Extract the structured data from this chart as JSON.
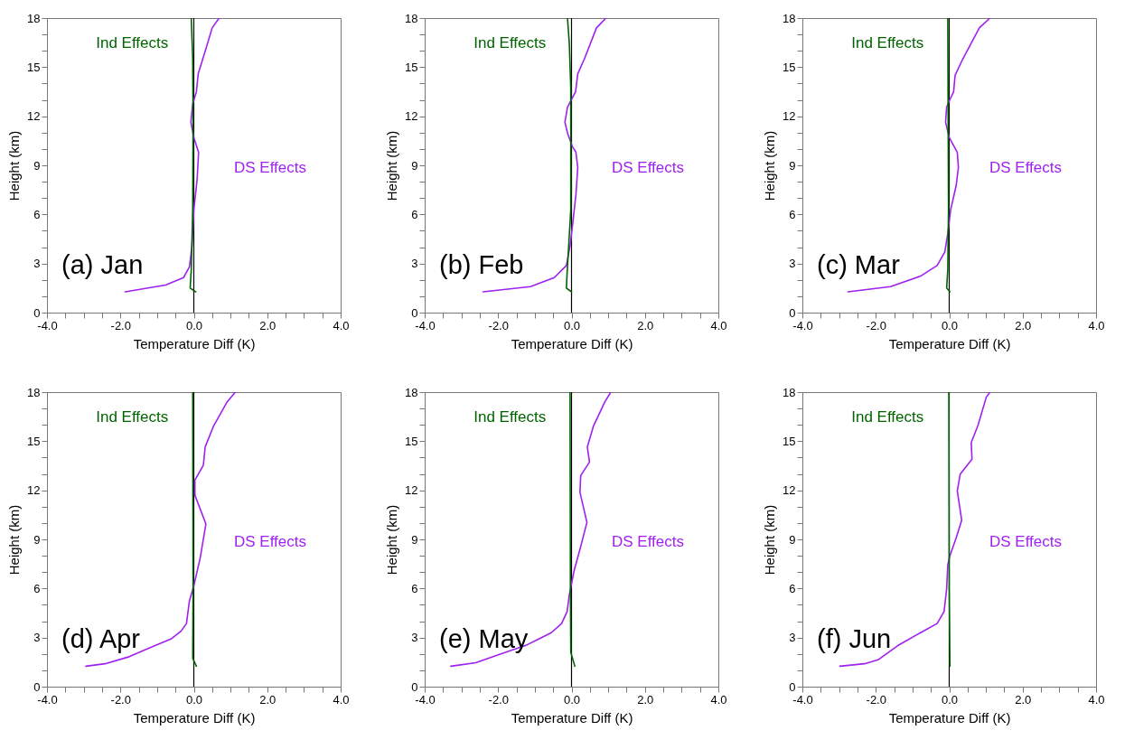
{
  "chart_data": [
    {
      "type": "line",
      "title": "(a) Jan",
      "xlabel": "Temperature Diff (K)",
      "ylabel": "Height (km)",
      "xlim": [
        -4,
        4
      ],
      "ylim": [
        0,
        18
      ],
      "xticks": [
        {
          "value": -4,
          "label": "-4.0"
        },
        {
          "value": -3.5,
          "label": null
        },
        {
          "value": -3,
          "label": null
        },
        {
          "value": -2.5,
          "label": null
        },
        {
          "value": -2,
          "label": "-2.0"
        },
        {
          "value": -1.5,
          "label": null
        },
        {
          "value": -1,
          "label": null
        },
        {
          "value": -0.5,
          "label": null
        },
        {
          "value": 0,
          "label": "0.0"
        },
        {
          "value": 0.5,
          "label": null
        },
        {
          "value": 1,
          "label": null
        },
        {
          "value": 1.5,
          "label": null
        },
        {
          "value": 2,
          "label": "2.0"
        },
        {
          "value": 2.5,
          "label": null
        },
        {
          "value": 3,
          "label": null
        },
        {
          "value": 3.5,
          "label": null
        },
        {
          "value": 4,
          "label": "4.0"
        }
      ],
      "yticks": [
        0,
        {
          "value": 1,
          "label": null
        },
        {
          "value": 2,
          "label": null
        },
        3,
        {
          "value": 4,
          "label": null
        },
        {
          "value": 5,
          "label": null
        },
        6,
        {
          "value": 7,
          "label": null
        },
        {
          "value": 8,
          "label": null
        },
        9,
        {
          "value": 10,
          "label": null
        },
        {
          "value": 11,
          "label": null
        },
        12,
        {
          "value": 13,
          "label": null
        },
        {
          "value": 14,
          "label": null
        },
        15,
        {
          "value": 16,
          "label": null
        },
        {
          "value": 17,
          "label": null
        },
        18
      ],
      "ref_lines": [
        {
          "axis": "x",
          "value": 0,
          "color": "#000000"
        }
      ],
      "series": [
        {
          "name": "DS Effects",
          "color": "#a020f0",
          "x": [
            -1.87,
            -0.77,
            -0.28,
            -0.12,
            -0.05,
            0,
            0.09,
            0.13,
            0,
            -0.08,
            -0.03,
            0.07,
            0.12,
            0.3,
            0.5,
            0.69
          ],
          "values": [
            1.27,
            1.68,
            2.14,
            2.79,
            4.08,
            6.29,
            8.14,
            9.8,
            10.7,
            11.64,
            12.75,
            13.49,
            14.6,
            15.9,
            17.4,
            18
          ]
        },
        {
          "name": "Ind Effects",
          "color": "#006400",
          "x": [
            0.05,
            -0.1,
            -0.07,
            -0.03,
            -0.02,
            -0.03,
            -0.07
          ],
          "values": [
            1.27,
            1.5,
            2.6,
            6.3,
            11.8,
            15.5,
            18
          ]
        }
      ]
    },
    {
      "type": "line",
      "title": "(b) Feb",
      "xlabel": "Temperature Diff (K)",
      "ylabel": "Height (km)",
      "xlim": [
        -4,
        4
      ],
      "ylim": [
        0,
        18
      ],
      "xticks": [
        {
          "value": -4,
          "label": "-4.0"
        },
        {
          "value": -3.5,
          "label": null
        },
        {
          "value": -3,
          "label": null
        },
        {
          "value": -2.5,
          "label": null
        },
        {
          "value": -2,
          "label": "-2.0"
        },
        {
          "value": -1.5,
          "label": null
        },
        {
          "value": -1,
          "label": null
        },
        {
          "value": -0.5,
          "label": null
        },
        {
          "value": 0,
          "label": "0.0"
        },
        {
          "value": 0.5,
          "label": null
        },
        {
          "value": 1,
          "label": null
        },
        {
          "value": 1.5,
          "label": null
        },
        {
          "value": 2,
          "label": "2.0"
        },
        {
          "value": 2.5,
          "label": null
        },
        {
          "value": 3,
          "label": null
        },
        {
          "value": 3.5,
          "label": null
        },
        {
          "value": 4,
          "label": "4.0"
        }
      ],
      "yticks": [
        0,
        {
          "value": 1,
          "label": null
        },
        {
          "value": 2,
          "label": null
        },
        3,
        {
          "value": 4,
          "label": null
        },
        {
          "value": 5,
          "label": null
        },
        6,
        {
          "value": 7,
          "label": null
        },
        {
          "value": 8,
          "label": null
        },
        9,
        {
          "value": 10,
          "label": null
        },
        {
          "value": 11,
          "label": null
        },
        12,
        {
          "value": 13,
          "label": null
        },
        {
          "value": 14,
          "label": null
        },
        15,
        {
          "value": 16,
          "label": null
        },
        {
          "value": 17,
          "label": null
        },
        18
      ],
      "ref_lines": [
        {
          "axis": "x",
          "value": 0,
          "color": "#000000"
        }
      ],
      "series": [
        {
          "name": "DS Effects",
          "color": "#a020f0",
          "x": [
            -2.41,
            -1.12,
            -0.47,
            -0.14,
            -0.04,
            0.02,
            0.12,
            0.17,
            0.12,
            0.02,
            -0.1,
            -0.18,
            -0.11,
            0,
            0.11,
            0.17,
            0.35,
            0.68,
            0.94
          ],
          "values": [
            1.27,
            1.59,
            2.14,
            2.88,
            4.08,
            5.18,
            7.21,
            8.87,
            9.8,
            10.17,
            10.9,
            11.64,
            12.56,
            13.03,
            13.49,
            14.6,
            15.5,
            17.4,
            18
          ]
        },
        {
          "name": "Ind Effects",
          "color": "#006400",
          "x": [
            0,
            -0.14,
            -0.12,
            -0.02,
            -0.02,
            -0.06,
            -0.11
          ],
          "values": [
            1.27,
            1.5,
            2.42,
            6.29,
            13.7,
            16.45,
            18
          ]
        }
      ]
    },
    {
      "type": "line",
      "title": "(c) Mar",
      "xlabel": "Temperature Diff (K)",
      "ylabel": "Height (km)",
      "xlim": [
        -4,
        4
      ],
      "ylim": [
        0,
        18
      ],
      "xticks": [
        {
          "value": -4,
          "label": "-4.0"
        },
        {
          "value": -3.5,
          "label": null
        },
        {
          "value": -3,
          "label": null
        },
        {
          "value": -2.5,
          "label": null
        },
        {
          "value": -2,
          "label": "-2.0"
        },
        {
          "value": -1.5,
          "label": null
        },
        {
          "value": -1,
          "label": null
        },
        {
          "value": -0.5,
          "label": null
        },
        {
          "value": 0,
          "label": "0.0"
        },
        {
          "value": 0.5,
          "label": null
        },
        {
          "value": 1,
          "label": null
        },
        {
          "value": 1.5,
          "label": null
        },
        {
          "value": 2,
          "label": "2.0"
        },
        {
          "value": 2.5,
          "label": null
        },
        {
          "value": 3,
          "label": null
        },
        {
          "value": 3.5,
          "label": null
        },
        {
          "value": 4,
          "label": "4.0"
        }
      ],
      "yticks": [
        0,
        {
          "value": 1,
          "label": null
        },
        {
          "value": 2,
          "label": null
        },
        3,
        {
          "value": 4,
          "label": null
        },
        {
          "value": 5,
          "label": null
        },
        6,
        {
          "value": 7,
          "label": null
        },
        {
          "value": 8,
          "label": null
        },
        9,
        {
          "value": 10,
          "label": null
        },
        {
          "value": 11,
          "label": null
        },
        12,
        {
          "value": 13,
          "label": null
        },
        {
          "value": 14,
          "label": null
        },
        15,
        {
          "value": 16,
          "label": null
        },
        {
          "value": 17,
          "label": null
        },
        18
      ],
      "ref_lines": [
        {
          "axis": "x",
          "value": 0,
          "color": "#000000"
        }
      ],
      "series": [
        {
          "name": "DS Effects",
          "color": "#a020f0",
          "x": [
            -2.76,
            -1.6,
            -0.78,
            -0.33,
            -0.12,
            -0.04,
            0.04,
            0.19,
            0.25,
            0.22,
            0,
            -0.1,
            -0.07,
            0.02,
            0.12,
            0.16,
            0.37,
            0.82,
            1.11
          ],
          "values": [
            1.27,
            1.59,
            2.23,
            2.88,
            3.71,
            4.82,
            6.29,
            7.77,
            8.87,
            9.8,
            10.7,
            11.64,
            12.56,
            13.03,
            13.49,
            14.5,
            15.5,
            17.4,
            18
          ]
        },
        {
          "name": "Ind Effects",
          "color": "#006400",
          "x": [
            0.02,
            -0.07,
            -0.04,
            -0.02,
            -0.04
          ],
          "values": [
            1.27,
            1.5,
            2.6,
            6.3,
            18
          ]
        }
      ]
    },
    {
      "type": "line",
      "title": "(d) Apr",
      "xlabel": "Temperature Diff (K)",
      "ylabel": "Height (km)",
      "xlim": [
        -4,
        4
      ],
      "ylim": [
        0,
        18
      ],
      "xticks": [
        {
          "value": -4,
          "label": "-4.0"
        },
        {
          "value": -3.5,
          "label": null
        },
        {
          "value": -3,
          "label": null
        },
        {
          "value": -2.5,
          "label": null
        },
        {
          "value": -2,
          "label": "-2.0"
        },
        {
          "value": -1.5,
          "label": null
        },
        {
          "value": -1,
          "label": null
        },
        {
          "value": -0.5,
          "label": null
        },
        {
          "value": 0,
          "label": "0.0"
        },
        {
          "value": 0.5,
          "label": null
        },
        {
          "value": 1,
          "label": null
        },
        {
          "value": 1.5,
          "label": null
        },
        {
          "value": 2,
          "label": "2.0"
        },
        {
          "value": 2.5,
          "label": null
        },
        {
          "value": 3,
          "label": null
        },
        {
          "value": 3.5,
          "label": null
        },
        {
          "value": 4,
          "label": "4.0"
        }
      ],
      "yticks": [
        0,
        {
          "value": 1,
          "label": null
        },
        {
          "value": 2,
          "label": null
        },
        3,
        {
          "value": 4,
          "label": null
        },
        {
          "value": 5,
          "label": null
        },
        6,
        {
          "value": 7,
          "label": null
        },
        {
          "value": 8,
          "label": null
        },
        9,
        {
          "value": 10,
          "label": null
        },
        {
          "value": 11,
          "label": null
        },
        12,
        {
          "value": 13,
          "label": null
        },
        {
          "value": 14,
          "label": null
        },
        15,
        {
          "value": 16,
          "label": null
        },
        {
          "value": 17,
          "label": null
        },
        18
      ],
      "ref_lines": [
        {
          "axis": "x",
          "value": 0,
          "color": "#000000"
        }
      ],
      "series": [
        {
          "name": "DS Effects",
          "color": "#a020f0",
          "x": [
            -2.94,
            -2.42,
            -1.76,
            -1.1,
            -0.61,
            -0.35,
            -0.2,
            -0.12,
            0,
            0.17,
            0.33,
            0.03,
            0.03,
            0.26,
            0.31,
            0.54,
            0.91,
            1.13
          ],
          "values": [
            1.25,
            1.4,
            1.83,
            2.47,
            2.93,
            3.39,
            3.86,
            5.24,
            6.16,
            7.82,
            9.94,
            11.7,
            12.62,
            13.54,
            14.65,
            15.94,
            17.41,
            18
          ]
        },
        {
          "name": "Ind Effects",
          "color": "#006400",
          "x": [
            0.07,
            -0.03,
            -0.02,
            -0.03
          ],
          "values": [
            1.25,
            1.73,
            5.98,
            18
          ]
        }
      ]
    },
    {
      "type": "line",
      "title": "(e) May",
      "xlabel": "Temperature Diff (K)",
      "ylabel": "Height (km)",
      "xlim": [
        -4,
        4
      ],
      "ylim": [
        0,
        18
      ],
      "xticks": [
        {
          "value": -4,
          "label": "-4.0"
        },
        {
          "value": -3.5,
          "label": null
        },
        {
          "value": -3,
          "label": null
        },
        {
          "value": -2.5,
          "label": null
        },
        {
          "value": -2,
          "label": "-2.0"
        },
        {
          "value": -1.5,
          "label": null
        },
        {
          "value": -1,
          "label": null
        },
        {
          "value": -0.5,
          "label": null
        },
        {
          "value": 0,
          "label": "0.0"
        },
        {
          "value": 0.5,
          "label": null
        },
        {
          "value": 1,
          "label": null
        },
        {
          "value": 1.5,
          "label": null
        },
        {
          "value": 2,
          "label": "2.0"
        },
        {
          "value": 2.5,
          "label": null
        },
        {
          "value": 3,
          "label": null
        },
        {
          "value": 3.5,
          "label": null
        },
        {
          "value": 4,
          "label": "4.0"
        }
      ],
      "yticks": [
        0,
        {
          "value": 1,
          "label": null
        },
        {
          "value": 2,
          "label": null
        },
        3,
        {
          "value": 4,
          "label": null
        },
        {
          "value": 5,
          "label": null
        },
        6,
        {
          "value": 7,
          "label": null
        },
        {
          "value": 8,
          "label": null
        },
        9,
        {
          "value": 10,
          "label": null
        },
        {
          "value": 11,
          "label": null
        },
        12,
        {
          "value": 13,
          "label": null
        },
        {
          "value": 14,
          "label": null
        },
        15,
        {
          "value": 16,
          "label": null
        },
        {
          "value": 17,
          "label": null
        },
        18
      ],
      "ref_lines": [
        {
          "axis": "x",
          "value": 0,
          "color": "#000000"
        }
      ],
      "series": [
        {
          "name": "DS Effects",
          "color": "#a020f0",
          "x": [
            -3.29,
            -2.61,
            -2.03,
            -1.21,
            -0.88,
            -0.55,
            -0.27,
            -0.12,
            -0.06,
            0.07,
            0.25,
            0.42,
            0.23,
            0.25,
            0.49,
            0.43,
            0.6,
            0.91,
            1.07
          ],
          "values": [
            1.25,
            1.46,
            1.92,
            2.56,
            2.93,
            3.3,
            3.86,
            4.59,
            5.61,
            7.08,
            8.56,
            10.04,
            11.88,
            12.9,
            13.73,
            14.65,
            15.94,
            17.41,
            18
          ]
        },
        {
          "name": "Ind Effects",
          "color": "#006400",
          "x": [
            0.09,
            -0.02,
            -0.03,
            -0.04
          ],
          "values": [
            1.25,
            2.1,
            5.98,
            18
          ]
        }
      ]
    },
    {
      "type": "line",
      "title": "(f) Jun",
      "xlabel": "Temperature Diff (K)",
      "ylabel": "Height (km)",
      "xlim": [
        -4,
        4
      ],
      "ylim": [
        0,
        18
      ],
      "xticks": [
        {
          "value": -4,
          "label": "-4.0"
        },
        {
          "value": -3.5,
          "label": null
        },
        {
          "value": -3,
          "label": null
        },
        {
          "value": -2.5,
          "label": null
        },
        {
          "value": -2,
          "label": "-2.0"
        },
        {
          "value": -1.5,
          "label": null
        },
        {
          "value": -1,
          "label": null
        },
        {
          "value": -0.5,
          "label": null
        },
        {
          "value": 0,
          "label": "0.0"
        },
        {
          "value": 0.5,
          "label": null
        },
        {
          "value": 1,
          "label": null
        },
        {
          "value": 1.5,
          "label": null
        },
        {
          "value": 2,
          "label": "2.0"
        },
        {
          "value": 2.5,
          "label": null
        },
        {
          "value": 3,
          "label": null
        },
        {
          "value": 3.5,
          "label": null
        },
        {
          "value": 4,
          "label": "4.0"
        }
      ],
      "yticks": [
        0,
        {
          "value": 1,
          "label": null
        },
        {
          "value": 2,
          "label": null
        },
        3,
        {
          "value": 4,
          "label": null
        },
        {
          "value": 5,
          "label": null
        },
        6,
        {
          "value": 7,
          "label": null
        },
        {
          "value": 8,
          "label": null
        },
        9,
        {
          "value": 10,
          "label": null
        },
        {
          "value": 11,
          "label": null
        },
        12,
        {
          "value": 13,
          "label": null
        },
        {
          "value": 14,
          "label": null
        },
        15,
        {
          "value": 16,
          "label": null
        },
        {
          "value": 17,
          "label": null
        },
        18
      ],
      "ref_lines": [
        {
          "axis": "x",
          "value": 0,
          "color": "#000000"
        }
      ],
      "series": [
        {
          "name": "DS Effects",
          "color": "#a020f0",
          "x": [
            -2.98,
            -2.31,
            -1.94,
            -1.4,
            -0.78,
            -0.33,
            -0.14,
            -0.07,
            -0.04,
            0.02,
            0.19,
            0.34,
            0.22,
            0.3,
            0.62,
            0.6,
            0.78,
            1.01,
            1.11
          ],
          "values": [
            1.25,
            1.4,
            1.64,
            2.51,
            3.3,
            3.86,
            4.59,
            5.98,
            7.45,
            8.0,
            9.1,
            10.17,
            11.96,
            12.99,
            13.9,
            14.92,
            15.94,
            17.69,
            18
          ]
        },
        {
          "name": "Ind Effects",
          "color": "#006400",
          "x": [
            0.02,
            0,
            -0.01
          ],
          "values": [
            1.25,
            5.98,
            18
          ]
        }
      ]
    }
  ]
}
